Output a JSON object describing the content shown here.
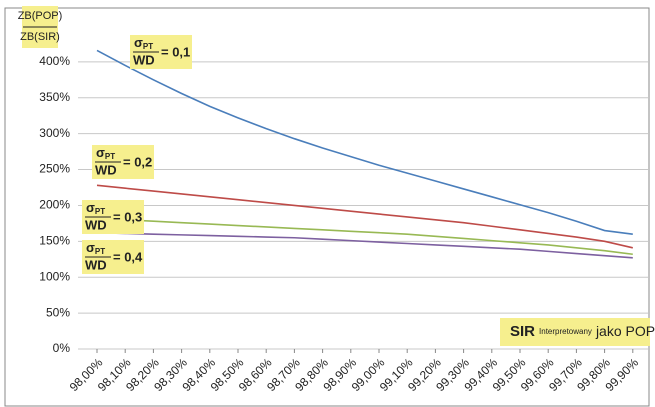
{
  "chart_data": {
    "type": "line",
    "y_label": {
      "numerator": "ZB(POP)",
      "denominator": "ZB(SIR)"
    },
    "categories": [
      "98,00%",
      "98,10%",
      "98,20%",
      "98,30%",
      "98,40%",
      "98,50%",
      "98,60%",
      "98,70%",
      "98,80%",
      "98,90%",
      "99,00%",
      "99,10%",
      "99,20%",
      "99,30%",
      "99,40%",
      "99,50%",
      "99,60%",
      "99,70%",
      "99,80%",
      "99,90%"
    ],
    "series": [
      {
        "color": "#4a7ebb",
        "values": [
          416,
          395,
          375,
          356,
          338,
          322,
          307,
          293,
          280,
          268,
          256,
          245,
          234,
          223,
          212,
          201,
          190,
          178,
          165,
          160
        ]
      },
      {
        "color": "#be4b48",
        "values": [
          228,
          224,
          220,
          216,
          212,
          208,
          204,
          200,
          196,
          192,
          188,
          184,
          180,
          176,
          171,
          166,
          161,
          156,
          150,
          141
        ]
      },
      {
        "color": "#98b954",
        "values": [
          182,
          180,
          178,
          176,
          174,
          172,
          170,
          168,
          166,
          164,
          162,
          160,
          157,
          154,
          151,
          148,
          145,
          141,
          137,
          132
        ]
      },
      {
        "color": "#7d60a0",
        "values": [
          162,
          161,
          160,
          159,
          158,
          157,
          156,
          155,
          153,
          151,
          149,
          147,
          145,
          143,
          141,
          139,
          136,
          133,
          130,
          127
        ]
      }
    ],
    "annotations": [
      {
        "symbol": "σ",
        "sub": "PT",
        "denominator": "WD",
        "equals": "= 0,1"
      },
      {
        "symbol": "σ",
        "sub": "PT",
        "denominator": "WD",
        "equals": "= 0,2"
      },
      {
        "symbol": "σ",
        "sub": "PT",
        "denominator": "WD",
        "equals": "= 0,3"
      },
      {
        "symbol": "σ",
        "sub": "PT",
        "denominator": "WD",
        "equals": "= 0,4"
      }
    ],
    "x_note": {
      "main": "SIR",
      "small": "Interpretowany",
      "rest": "jako POP"
    },
    "ylim": [
      0,
      450
    ],
    "yticks": [
      {
        "value": 0,
        "label": "0%"
      },
      {
        "value": 50,
        "label": "50%"
      },
      {
        "value": 100,
        "label": "100%"
      },
      {
        "value": 150,
        "label": "150%"
      },
      {
        "value": 200,
        "label": "200%"
      },
      {
        "value": 250,
        "label": "250%"
      },
      {
        "value": 300,
        "label": "300%"
      },
      {
        "value": 350,
        "label": "350%"
      },
      {
        "value": 400,
        "label": "400%"
      }
    ],
    "grid": true
  }
}
